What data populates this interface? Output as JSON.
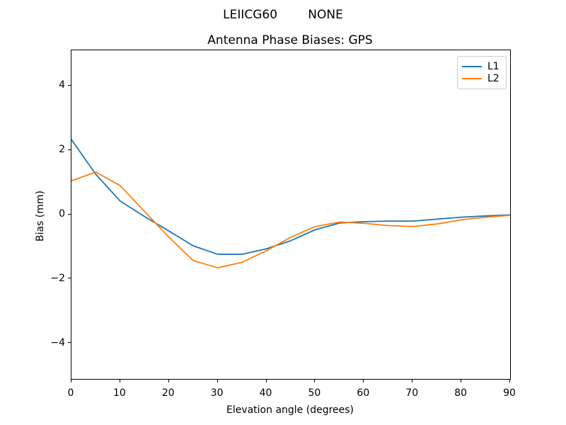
{
  "figure": {
    "suptitle": "LEIICG60        NONE",
    "background": "#ffffff"
  },
  "chart_data": {
    "type": "line",
    "suptitle": "LEIICG60        NONE",
    "title": "Antenna Phase Biases: GPS",
    "xlabel": "Elevation angle (degrees)",
    "ylabel": "Bias (mm)",
    "xlim": [
      0,
      90
    ],
    "ylim": [
      -5.1,
      5.1
    ],
    "xticks": [
      0,
      10,
      20,
      30,
      40,
      50,
      60,
      70,
      80,
      90
    ],
    "yticks": [
      -4,
      -2,
      0,
      2,
      4
    ],
    "grid": false,
    "legend_position": "upper right",
    "x": [
      0,
      5,
      10,
      15,
      20,
      25,
      30,
      35,
      40,
      45,
      50,
      55,
      60,
      65,
      70,
      75,
      80,
      85,
      90
    ],
    "series": [
      {
        "name": "L1",
        "color": "#1f77b4",
        "values": [
          2.33,
          1.25,
          0.42,
          -0.06,
          -0.51,
          -0.97,
          -1.23,
          -1.23,
          -1.06,
          -0.81,
          -0.47,
          -0.26,
          -0.22,
          -0.2,
          -0.2,
          -0.14,
          -0.08,
          -0.04,
          -0.01
        ]
      },
      {
        "name": "L2",
        "color": "#ff7f0e",
        "values": [
          1.05,
          1.32,
          0.9,
          0.1,
          -0.7,
          -1.43,
          -1.65,
          -1.48,
          -1.12,
          -0.7,
          -0.37,
          -0.23,
          -0.27,
          -0.34,
          -0.37,
          -0.29,
          -0.16,
          -0.08,
          -0.02
        ]
      }
    ]
  }
}
